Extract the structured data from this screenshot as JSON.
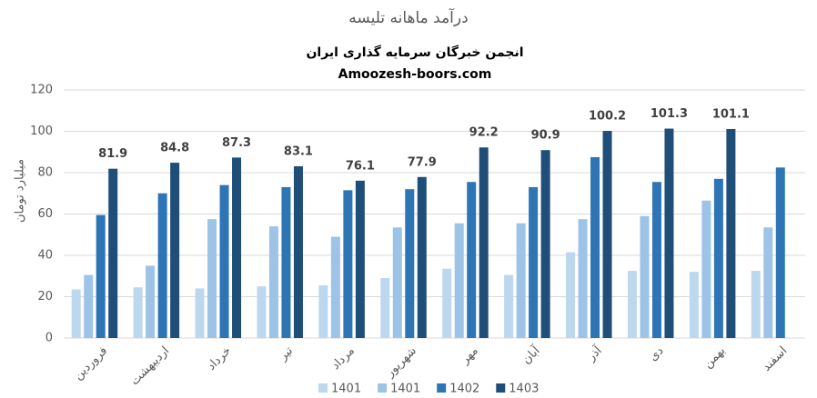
{
  "chart_data": {
    "type": "bar",
    "title": "درآمد ماهانه تلیسه",
    "subtitle": [
      "انجمن خبرگان سرمایه گذاری ایران",
      "Amoozesh-boors.com"
    ],
    "y_label": "میلیارد تومان",
    "categories": [
      "فروردین",
      "اردیبهشت",
      "خرداد",
      "تیر",
      "مرداد",
      "شهریور",
      "مهر",
      "آبان",
      "آذر",
      "دی",
      "بهمن",
      "اسفند"
    ],
    "series": [
      {
        "name": "1401",
        "color": "#bdd7ee",
        "values": [
          23.5,
          24.5,
          24,
          25,
          25.5,
          29,
          33.5,
          30.5,
          41.5,
          32.5,
          32,
          32.5
        ]
      },
      {
        "name": "1401",
        "color": "#9dc3e6",
        "values": [
          30.5,
          35,
          57.5,
          54,
          49,
          53.5,
          55.5,
          55.5,
          57.5,
          59,
          66.5,
          53.5
        ]
      },
      {
        "name": "1402",
        "color": "#2e75b6",
        "values": [
          59.5,
          70,
          74,
          73,
          71.5,
          72,
          75.5,
          73,
          87.5,
          75.5,
          77,
          82.5
        ]
      },
      {
        "name": "1403",
        "color": "#1f4e79",
        "values": [
          81.9,
          84.8,
          87.3,
          83.1,
          76.1,
          77.9,
          92.2,
          90.9,
          100.2,
          101.3,
          101.1,
          null
        ],
        "data_labels": true
      }
    ],
    "ylim": [
      0,
      120
    ],
    "yticks": [
      0,
      20,
      40,
      60,
      80,
      100,
      120
    ],
    "grid": true,
    "legend": "bottom"
  }
}
